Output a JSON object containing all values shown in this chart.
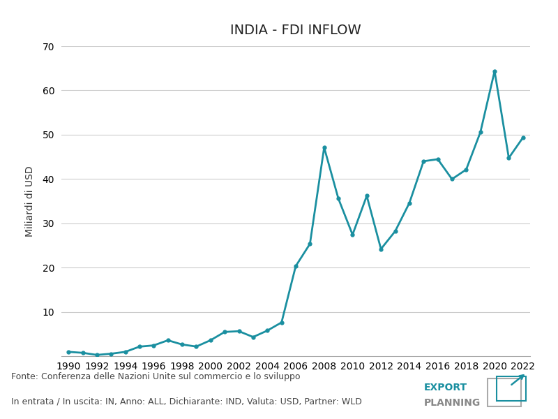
{
  "title": "INDIA - FDI INFLOW",
  "ylabel": "Miliardi di USD",
  "line_color": "#1a8fa0",
  "background_color": "#ffffff",
  "grid_color": "#cccccc",
  "ylim": [
    0,
    70
  ],
  "yticks": [
    10,
    20,
    30,
    40,
    50,
    60,
    70
  ],
  "years": [
    1990,
    1991,
    1992,
    1993,
    1994,
    1995,
    1996,
    1997,
    1998,
    1999,
    2000,
    2001,
    2002,
    2003,
    2004,
    2005,
    2006,
    2007,
    2008,
    2009,
    2010,
    2011,
    2012,
    2013,
    2014,
    2015,
    2016,
    2017,
    2018,
    2019,
    2020,
    2021,
    2022
  ],
  "values": [
    0.97,
    0.75,
    0.28,
    0.55,
    0.97,
    2.15,
    2.43,
    3.58,
    2.63,
    2.17,
    3.59,
    5.47,
    5.63,
    4.32,
    5.77,
    7.61,
    20.33,
    25.35,
    47.1,
    35.59,
    27.42,
    36.19,
    24.19,
    28.2,
    34.58,
    44.01,
    44.46,
    39.97,
    42.12,
    50.55,
    64.36,
    44.75,
    49.36
  ],
  "footnote_line1": "Fonte: Conferenza delle Nazioni Unite sul commercio e lo sviluppo",
  "footnote_line2": "In entrata / In uscita: IN, Anno: ALL, Dichiarante: IND, Valuta: USD, Partner: WLD",
  "logo_text1": "EXPORT",
  "logo_text2": "PLANNING",
  "title_fontsize": 14,
  "label_fontsize": 10,
  "tick_fontsize": 10,
  "footnote_fontsize": 9,
  "line_width": 2.0,
  "marker_size": 3.5
}
